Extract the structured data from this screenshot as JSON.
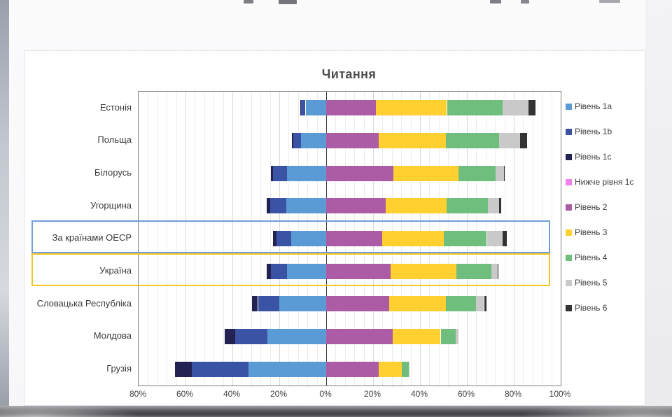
{
  "chart_data": {
    "type": "bar",
    "subtype": "diverging-stacked-bar",
    "title": "Читання",
    "axis": {
      "min_percent": -80,
      "max_percent": 100,
      "major_tick_step_percent": 20,
      "minor_grid_step_percent": 4,
      "tick_labels": [
        "80%",
        "60%",
        "40%",
        "20%",
        "0%",
        "20%",
        "40%",
        "60%",
        "80%",
        "100%"
      ]
    },
    "grid": true,
    "legend_position": "right",
    "legend": [
      {
        "key": "level_1a",
        "label": "Рівень 1a",
        "color": "#5B9BD5"
      },
      {
        "key": "level_1b",
        "label": "Рівень 1b",
        "color": "#3A53A4"
      },
      {
        "key": "level_1c",
        "label": "Рівень 1c",
        "color": "#232253"
      },
      {
        "key": "below_1c",
        "label": "Нижче рівня 1c",
        "color": "#F080EC"
      },
      {
        "key": "level_2",
        "label": "Рівень 2",
        "color": "#AC5CA4"
      },
      {
        "key": "level_3",
        "label": "Рівень 3",
        "color": "#FFD02F"
      },
      {
        "key": "level_4",
        "label": "Рівень 4",
        "color": "#6FBE7D"
      },
      {
        "key": "level_5",
        "label": "Рівень 5",
        "color": "#C9C9C9"
      },
      {
        "key": "level_6",
        "label": "Рівень 6",
        "color": "#333333"
      }
    ],
    "left_stack_order": [
      "level_1a",
      "level_1b",
      "level_1c",
      "below_1c"
    ],
    "right_stack_order": [
      "level_2",
      "level_3",
      "level_4",
      "level_5",
      "level_6"
    ],
    "categories": [
      "Естонія",
      "Польща",
      "Білорусь",
      "Угорщина",
      "За країнами ОЕСР",
      "Україна",
      "Словацька Республіка",
      "Молдова",
      "Грузія"
    ],
    "rows": [
      {
        "name": "Естонія",
        "values": {
          "below_1c": 0,
          "level_1c": 0.4,
          "level_1b": 2.0,
          "level_1a": 8.8,
          "level_2": 21.1,
          "level_3": 30.4,
          "level_4": 23.8,
          "level_5": 11.1,
          "level_6": 3.0
        }
      },
      {
        "name": "Польща",
        "values": {
          "below_1c": 0,
          "level_1c": 0.5,
          "level_1b": 3.3,
          "level_1a": 10.7,
          "level_2": 22.4,
          "level_3": 28.6,
          "level_4": 22.8,
          "level_5": 9.0,
          "level_6": 3.0
        }
      },
      {
        "name": "Білорусь",
        "values": {
          "below_1c": 0,
          "level_1c": 1.0,
          "level_1b": 6.0,
          "level_1a": 16.6,
          "level_2": 28.5,
          "level_3": 28.0,
          "level_4": 15.8,
          "level_5": 3.5,
          "level_6": 0.3
        }
      },
      {
        "name": "Угорщина",
        "values": {
          "below_1c": 0,
          "level_1c": 1.3,
          "level_1b": 7.0,
          "level_1a": 17.0,
          "level_2": 25.4,
          "level_3": 26.0,
          "level_4": 17.5,
          "level_5": 4.8,
          "level_6": 0.9
        }
      },
      {
        "name": "За країнами ОЕСР",
        "values": {
          "below_1c": 0,
          "level_1c": 1.5,
          "level_1b": 6.3,
          "level_1a": 14.8,
          "level_2": 24.0,
          "level_3": 26.2,
          "level_4": 18.3,
          "level_5": 6.6,
          "level_6": 1.8
        }
      },
      {
        "name": "Україна",
        "values": {
          "below_1c": 0,
          "level_1c": 1.8,
          "level_1b": 6.8,
          "level_1a": 16.7,
          "level_2": 27.5,
          "level_3": 28.0,
          "level_4": 14.9,
          "level_5": 2.8,
          "level_6": 0.4
        }
      },
      {
        "name": "Словацька Республіка",
        "values": {
          "below_1c": 0,
          "level_1c": 2.5,
          "level_1b": 9.2,
          "level_1a": 19.9,
          "level_2": 26.9,
          "level_3": 24.1,
          "level_4": 12.8,
          "level_5": 3.5,
          "level_6": 0.9
        }
      },
      {
        "name": "Молдова",
        "values": {
          "below_1c": 0,
          "level_1c": 4.3,
          "level_1b": 13.8,
          "level_1a": 25.1,
          "level_2": 28.3,
          "level_3": 20.5,
          "level_4": 6.5,
          "level_5": 1.0,
          "level_6": 0
        }
      },
      {
        "name": "Грузія",
        "values": {
          "below_1c": 0,
          "level_1c": 7.1,
          "level_1b": 24.3,
          "level_1a": 33.1,
          "level_2": 22.3,
          "level_3": 10.0,
          "level_4": 2.8,
          "level_5": 0.3,
          "level_6": 0
        }
      }
    ],
    "highlights": [
      {
        "category": "За країнами ОЕСР",
        "box_color": "#6FA0D6"
      },
      {
        "category": "Україна",
        "box_color": "#F3C628"
      }
    ]
  }
}
